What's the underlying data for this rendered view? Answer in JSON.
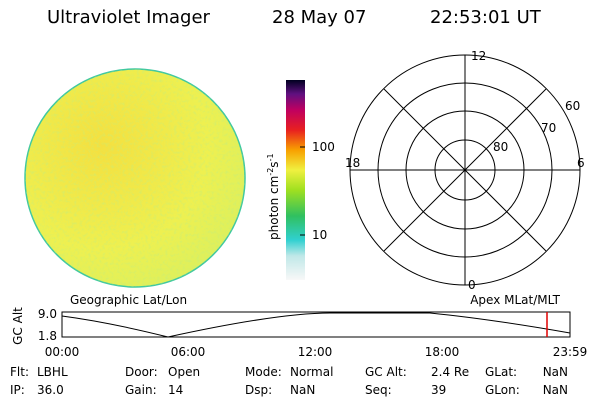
{
  "header": {
    "instrument": "Ultraviolet Imager",
    "date": "28 May 07",
    "time": "22:53:01 UT"
  },
  "colorbar": {
    "unit": "photon cm",
    "exp1": "-2",
    "s": "s",
    "exp2": "-1",
    "ticks": [
      "100",
      "10"
    ]
  },
  "polar": {
    "mlt_labels": [
      "12",
      "18",
      "6",
      "0"
    ],
    "lat_labels": [
      "60",
      "70",
      "80"
    ]
  },
  "panels": {
    "left": "Geographic Lat/Lon",
    "right": "Apex MLat/MLT"
  },
  "altitude_plot": {
    "ylabel": "GC Alt",
    "yticks": [
      "9.0",
      "1.8"
    ],
    "xticks": [
      "00:00",
      "06:00",
      "12:00",
      "18:00",
      "23:59"
    ]
  },
  "status": [
    [
      {
        "label": "Flt:",
        "value": "LBHL"
      },
      {
        "label": "Door:",
        "value": "Open"
      },
      {
        "label": "Mode:",
        "value": "Normal"
      },
      {
        "label": "GC Alt:",
        "value": "2.4 Re"
      },
      {
        "label": "GLat:",
        "value": "NaN"
      }
    ],
    [
      {
        "label": "IP:",
        "value": "36.0"
      },
      {
        "label": "Gain:",
        "value": "14"
      },
      {
        "label": "Dsp:",
        "value": "NaN"
      },
      {
        "label": "Seq:",
        "value": "39"
      },
      {
        "label": "GLon:",
        "value": "NaN"
      }
    ]
  ]
}
